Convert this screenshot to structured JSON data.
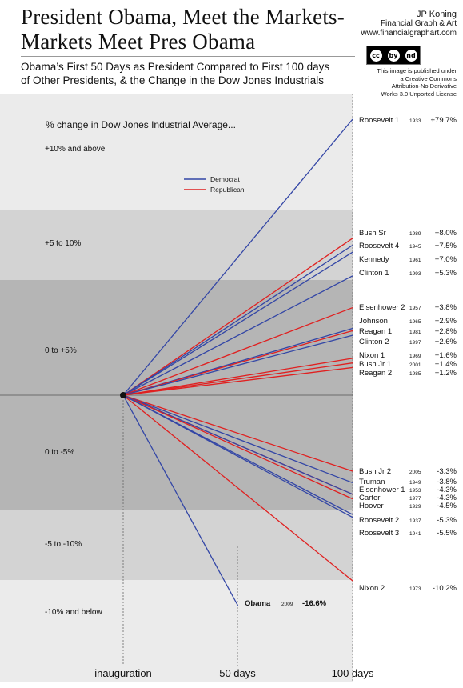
{
  "header": {
    "title_line1": "President Obama, Meet the Markets-",
    "title_line2": "Markets Meet Pres Obama",
    "subtitle_line1": "Obama’s First 50 Days as President Compared to First 100 days",
    "subtitle_line2": "of Other Presidents, & the Change in the Dow Jones Industrials"
  },
  "credit": {
    "author": "JP Koning",
    "org": "Financial Graph & Art",
    "url": "www.financialgraphart.com",
    "cc_badges": [
      "cc",
      "by",
      "nd"
    ],
    "license_lines": [
      "This image is published under",
      "a Creative Commons",
      "Attribution-No Derivative",
      "Works 3.0 Unported License"
    ]
  },
  "chart_data": {
    "type": "line",
    "title": "% change in Dow Jones Industrial Average...",
    "x_tick_labels": [
      "inauguration",
      "50 days",
      "100 days"
    ],
    "x_days": [
      0,
      50,
      100
    ],
    "bands": [
      {
        "label": "+10% and above",
        "color": "#ebebeb"
      },
      {
        "label": "+5 to 10%",
        "color": "#d3d3d3"
      },
      {
        "label": "0 to +5%",
        "color": "#b5b5b5"
      },
      {
        "label": "0 to -5%",
        "color": "#b5b5b5"
      },
      {
        "label": "-5 to -10%",
        "color": "#d3d3d3"
      },
      {
        "label": "-10% and below",
        "color": "#ebebeb"
      }
    ],
    "legend": [
      {
        "name": "Democrat",
        "color": "#3346a6"
      },
      {
        "name": "Republican",
        "color": "#e02020"
      }
    ],
    "legend_position": "upper-middle",
    "series": [
      {
        "name": "Roosevelt 1",
        "year": "1933",
        "value_label": "+79.7%",
        "value": 79.7,
        "party": "Democrat",
        "days": 100
      },
      {
        "name": "Bush Sr",
        "year": "1989",
        "value_label": "+8.0%",
        "value": 8.0,
        "party": "Republican",
        "days": 100
      },
      {
        "name": "Roosevelt 4",
        "year": "1945",
        "value_label": "+7.5%",
        "value": 7.5,
        "party": "Democrat",
        "days": 100
      },
      {
        "name": "Kennedy",
        "year": "1961",
        "value_label": "+7.0%",
        "value": 7.0,
        "party": "Democrat",
        "days": 100
      },
      {
        "name": "Clinton 1",
        "year": "1993",
        "value_label": "+5.3%",
        "value": 5.3,
        "party": "Democrat",
        "days": 100
      },
      {
        "name": "Eisenhower 2",
        "year": "1957",
        "value_label": "+3.8%",
        "value": 3.8,
        "party": "Republican",
        "days": 100
      },
      {
        "name": "Johnson",
        "year": "1965",
        "value_label": "+2.9%",
        "value": 2.9,
        "party": "Democrat",
        "days": 100
      },
      {
        "name": "Reagan 1",
        "year": "1981",
        "value_label": "+2.8%",
        "value": 2.8,
        "party": "Republican",
        "days": 100
      },
      {
        "name": "Clinton 2",
        "year": "1997",
        "value_label": "+2.6%",
        "value": 2.6,
        "party": "Democrat",
        "days": 100
      },
      {
        "name": "Nixon 1",
        "year": "1969",
        "value_label": "+1.6%",
        "value": 1.6,
        "party": "Republican",
        "days": 100
      },
      {
        "name": "Bush Jr 1",
        "year": "2001",
        "value_label": "+1.4%",
        "value": 1.4,
        "party": "Republican",
        "days": 100
      },
      {
        "name": "Reagan 2",
        "year": "1985",
        "value_label": "+1.2%",
        "value": 1.2,
        "party": "Republican",
        "days": 100
      },
      {
        "name": "Bush Jr 2",
        "year": "2005",
        "value_label": "-3.3%",
        "value": -3.3,
        "party": "Republican",
        "days": 100
      },
      {
        "name": "Truman",
        "year": "1949",
        "value_label": "-3.8%",
        "value": -3.8,
        "party": "Democrat",
        "days": 100
      },
      {
        "name": "Eisenhower 1",
        "year": "1953",
        "value_label": "-4.3%",
        "value": -4.3,
        "party": "Republican",
        "days": 100
      },
      {
        "name": "Carter",
        "year": "1977",
        "value_label": "-4.3%",
        "value": -4.3,
        "party": "Democrat",
        "days": 100
      },
      {
        "name": "Hoover",
        "year": "1929",
        "value_label": "-4.5%",
        "value": -4.5,
        "party": "Republican",
        "days": 100
      },
      {
        "name": "Roosevelt 2",
        "year": "1937",
        "value_label": "-5.3%",
        "value": -5.3,
        "party": "Democrat",
        "days": 100
      },
      {
        "name": "Roosevelt 3",
        "year": "1941",
        "value_label": "-5.5%",
        "value": -5.5,
        "party": "Democrat",
        "days": 100
      },
      {
        "name": "Nixon 2",
        "year": "1973",
        "value_label": "-10.2%",
        "value": -10.2,
        "party": "Republican",
        "days": 100
      },
      {
        "name": "Obama",
        "year": "2009",
        "value_label": "-16.6%",
        "value": -16.6,
        "party": "Democrat",
        "days": 50
      }
    ]
  }
}
